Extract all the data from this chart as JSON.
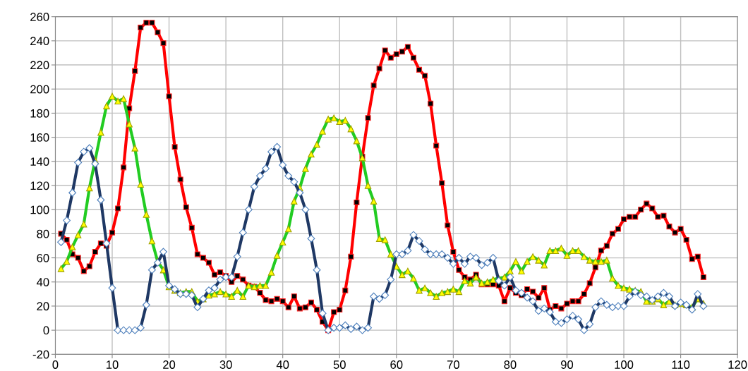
{
  "chart_data": {
    "type": "line",
    "x": [
      1,
      2,
      3,
      4,
      5,
      6,
      7,
      8,
      9,
      10,
      11,
      12,
      13,
      14,
      15,
      16,
      17,
      18,
      19,
      20,
      21,
      22,
      23,
      24,
      25,
      26,
      27,
      28,
      29,
      30,
      31,
      32,
      33,
      34,
      35,
      36,
      37,
      38,
      39,
      40,
      41,
      42,
      43,
      44,
      45,
      46,
      47,
      48,
      49,
      50,
      51,
      52,
      53,
      54,
      55,
      56,
      57,
      58,
      59,
      60,
      61,
      62,
      63,
      64,
      65,
      66,
      67,
      68,
      69,
      70,
      71,
      72,
      73,
      74,
      75,
      76,
      77,
      78,
      79,
      80,
      81,
      82,
      83,
      84,
      85,
      86,
      87,
      88,
      89,
      90,
      91,
      92,
      93,
      94,
      95,
      96,
      97,
      98,
      99,
      100,
      101,
      102,
      103,
      104,
      105,
      106,
      107,
      108,
      109,
      110,
      111,
      112,
      113,
      114
    ],
    "series": [
      {
        "color": "#ff0000",
        "marker": "square",
        "values": [
          80,
          75,
          63,
          60,
          49,
          53,
          65,
          72,
          70,
          81,
          101,
          135,
          184,
          215,
          251,
          255,
          255,
          247,
          238,
          194,
          152,
          125,
          102,
          85,
          63,
          60,
          56,
          46,
          48,
          45,
          40,
          45,
          42,
          37,
          36,
          31,
          25,
          24,
          26,
          24,
          19,
          28,
          18,
          19,
          23,
          17,
          7,
          0,
          15,
          17,
          33,
          61,
          106,
          144,
          176,
          203,
          217,
          232,
          226,
          229,
          231,
          235,
          226,
          216,
          211,
          188,
          153,
          122,
          87,
          65,
          50,
          44,
          42,
          46,
          38,
          38,
          38,
          37,
          24,
          35,
          31,
          29,
          34,
          32,
          27,
          35,
          17,
          20,
          18,
          22,
          24,
          24,
          30,
          39,
          52,
          66,
          70,
          80,
          84,
          92,
          94,
          94,
          100,
          105,
          101,
          94,
          95,
          86,
          81,
          84,
          75,
          59,
          61,
          44
        ]
      },
      {
        "color": "#22cc22",
        "marker": "triangle",
        "values": [
          51,
          57,
          69,
          79,
          88,
          118,
          141,
          164,
          186,
          194,
          190,
          192,
          171,
          151,
          121,
          96,
          74,
          57,
          50,
          36,
          33,
          31,
          32,
          32,
          24,
          26,
          29,
          30,
          32,
          30,
          28,
          33,
          28,
          37,
          36,
          37,
          37,
          48,
          62,
          73,
          84,
          107,
          118,
          134,
          146,
          154,
          165,
          175,
          176,
          173,
          174,
          167,
          157,
          143,
          120,
          107,
          76,
          75,
          63,
          53,
          46,
          49,
          43,
          33,
          35,
          31,
          28,
          31,
          32,
          34,
          32,
          41,
          39,
          44,
          39,
          40,
          42,
          43,
          44,
          49,
          57,
          49,
          57,
          61,
          58,
          54,
          66,
          66,
          68,
          62,
          66,
          66,
          61,
          58,
          57,
          57,
          58,
          43,
          37,
          35,
          34,
          33,
          32,
          24,
          24,
          26,
          21,
          24,
          21,
          22,
          21,
          19,
          26,
          22
        ]
      },
      {
        "color": "#1f3864",
        "marker": "diamond",
        "values": [
          73,
          91,
          114,
          139,
          148,
          151,
          138,
          108,
          72,
          35,
          0,
          0,
          0,
          0,
          2,
          21,
          50,
          56,
          65,
          37,
          34,
          30,
          30,
          29,
          19,
          26,
          33,
          35,
          42,
          44,
          44,
          61,
          81,
          100,
          119,
          128,
          134,
          148,
          152,
          137,
          128,
          123,
          114,
          100,
          76,
          50,
          14,
          0,
          2,
          2,
          4,
          1,
          3,
          0,
          2,
          28,
          26,
          29,
          42,
          63,
          63,
          66,
          79,
          74,
          67,
          63,
          63,
          63,
          60,
          55,
          60,
          55,
          61,
          60,
          54,
          56,
          60,
          41,
          37,
          44,
          33,
          31,
          27,
          24,
          16,
          18,
          15,
          7,
          6,
          9,
          12,
          9,
          0,
          5,
          19,
          24,
          21,
          19,
          20,
          20,
          28,
          32,
          29,
          28,
          25,
          28,
          31,
          28,
          20,
          23,
          21,
          17,
          30,
          20
        ]
      }
    ],
    "xlim": [
      0,
      120
    ],
    "xticks": [
      0,
      10,
      20,
      30,
      40,
      50,
      60,
      70,
      80,
      90,
      100,
      110,
      120
    ],
    "ylim": [
      -20,
      260
    ],
    "yticks": [
      -20,
      0,
      20,
      40,
      60,
      80,
      100,
      120,
      140,
      160,
      180,
      200,
      220,
      240,
      260
    ],
    "grid": true,
    "legend": false,
    "line_style": "solid"
  }
}
